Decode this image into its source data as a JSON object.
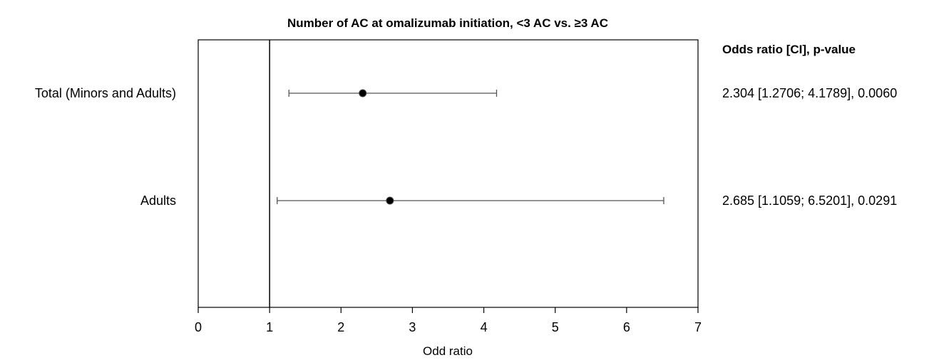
{
  "chart_data": {
    "type": "scatter",
    "subtype": "forest-plot",
    "title": "Number of AC at omalizumab initiation, <3 AC vs. ≥3 AC",
    "xlabel": "Odd ratio",
    "ylabel": "",
    "xlim": [
      0,
      7
    ],
    "xticks": [
      "0",
      "1",
      "2",
      "3",
      "4",
      "5",
      "6",
      "7"
    ],
    "reference_line": 1,
    "annotation_header": "Odds ratio [CI], p-value",
    "grid": false,
    "rows": [
      {
        "label": "Total (Minors and Adults)",
        "odds_ratio": 2.304,
        "ci_low": 1.2706,
        "ci_high": 4.1789,
        "p_value": 0.006,
        "annotation": "2.304 [1.2706; 4.1789], 0.0060"
      },
      {
        "label": "Adults",
        "odds_ratio": 2.685,
        "ci_low": 1.1059,
        "ci_high": 6.5201,
        "p_value": 0.0291,
        "annotation": "2.685 [1.1059; 6.5201], 0.0291"
      }
    ],
    "colors": {
      "marker": "#000000",
      "error_bar": "#555555",
      "axis": "#000000"
    }
  }
}
